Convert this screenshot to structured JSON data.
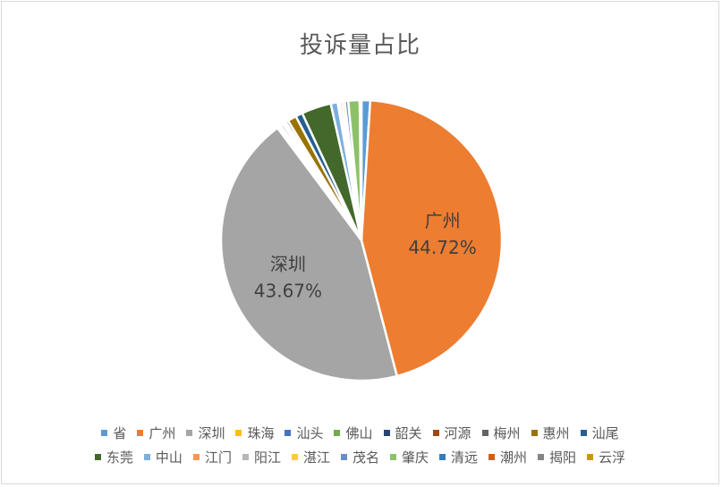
{
  "chart_data": {
    "type": "pie",
    "title": "投诉量占比",
    "categories": [
      "省",
      "广州",
      "深圳",
      "珠海",
      "汕头",
      "佛山",
      "韶关",
      "河源",
      "梅州",
      "惠州",
      "汕尾",
      "东莞",
      "中山",
      "江门",
      "阳江",
      "湛江",
      "茂名",
      "肇庆",
      "清远",
      "潮州",
      "揭阳",
      "云浮"
    ],
    "values": [
      1.0,
      44.72,
      43.67,
      0.2,
      0.25,
      0.3,
      0.2,
      0.2,
      0.3,
      1.0,
      0.8,
      3.4,
      0.8,
      0.2,
      0.3,
      0.3,
      0.4,
      1.3,
      0.0,
      0.0,
      0.0,
      0.2
    ],
    "colors": [
      "#5b9bd5",
      "#ed7d31",
      "#a5a5a5",
      "#ffc000",
      "#4472c4",
      "#70ad47",
      "#264478",
      "#9e480e",
      "#636363",
      "#997300",
      "#255e91",
      "#43682b",
      "#7cafdd",
      "#f1975a",
      "#b7b7b7",
      "#ffcd33",
      "#698ed0",
      "#8cc168",
      "#327dc2",
      "#d26012",
      "#848484",
      "#cc9a00"
    ],
    "data_labels": [
      {
        "index": 1,
        "name": "广州",
        "value": "44.72%"
      },
      {
        "index": 2,
        "name": "深圳",
        "value": "43.67%"
      }
    ],
    "legend_position": "bottom"
  }
}
